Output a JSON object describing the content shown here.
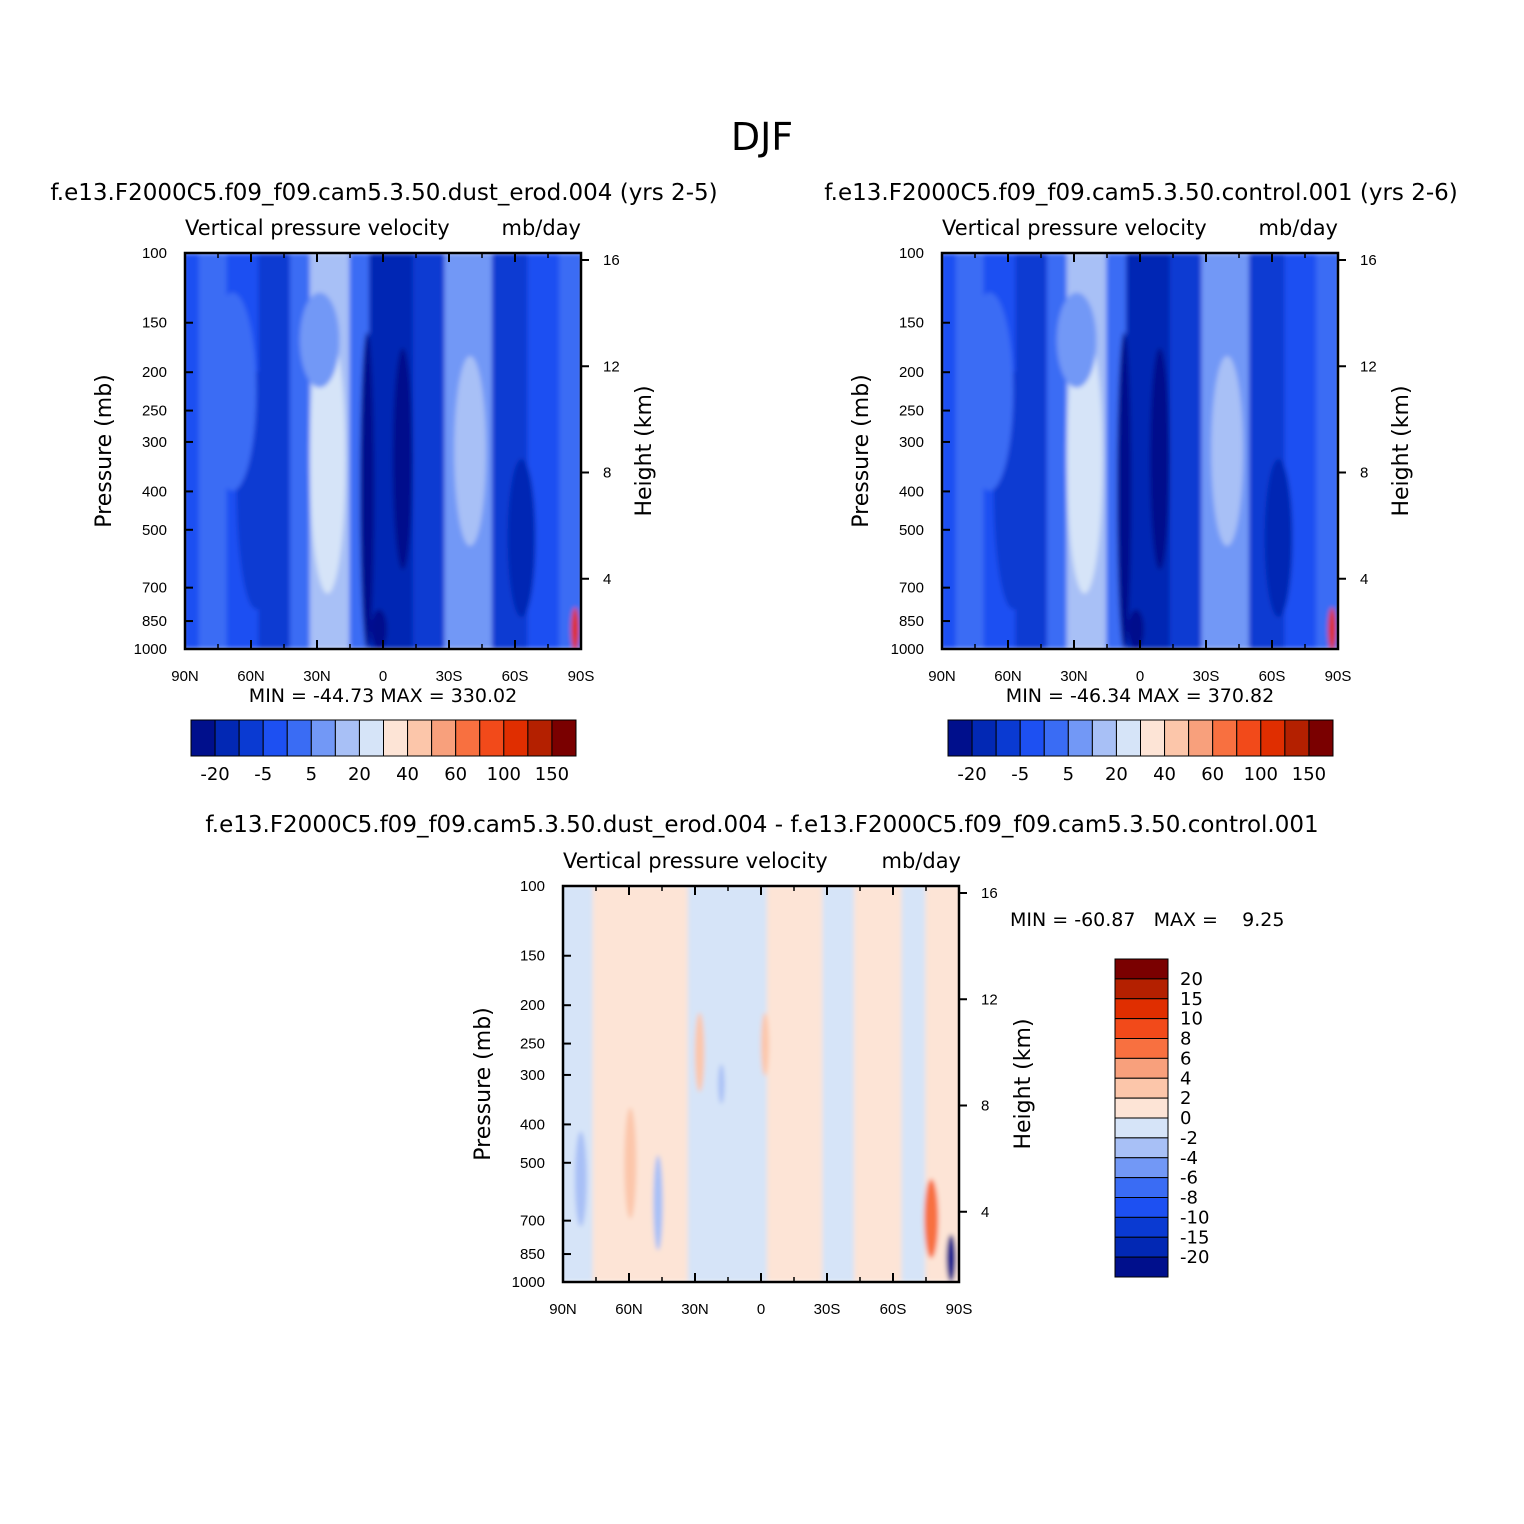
{
  "figure": {
    "title": "DJF",
    "variable_label": "Vertical pressure velocity",
    "units_label": "mb/day",
    "left_axis_label": "Pressure (mb)",
    "right_axis_label": "Height (km)"
  },
  "panels": [
    {
      "id": "case",
      "subtitle": "f.e13.F2000C5.f09_f09.cam5.3.50.dust_erod.004 (yrs 2-5)",
      "stats": "MIN = -44.73   MAX = 330.02"
    },
    {
      "id": "control",
      "subtitle": "f.e13.F2000C5.f09_f09.cam5.3.50.control.001 (yrs 2-6)",
      "stats": "MIN = -46.34   MAX = 370.82"
    },
    {
      "id": "difference",
      "subtitle": "f.e13.F2000C5.f09_f09.cam5.3.50.dust_erod.004 - f.e13.F2000C5.f09_f09.cam5.3.50.control.001",
      "stats": "MIN = -60.87   MAX =    9.25"
    }
  ],
  "colors": {
    "palette": [
      "#000f8c",
      "#0228b4",
      "#0a3ad2",
      "#1d50f2",
      "#3a6cf4",
      "#7298f6",
      "#a8c0f6",
      "#d6e4f8",
      "#fde4d6",
      "#fcc6aa",
      "#f8a07c",
      "#f87040",
      "#f24a1a",
      "#e02e00",
      "#b42000",
      "#7a0000"
    ]
  },
  "chart_data": [
    {
      "type": "heatmap",
      "panel": "case",
      "x_ticks": [
        "90N",
        "60N",
        "30N",
        "0",
        "30S",
        "60S",
        "90S"
      ],
      "x_range": [
        90,
        -90
      ],
      "y_ticks": [
        100,
        150,
        200,
        250,
        300,
        400,
        500,
        700,
        850,
        1000
      ],
      "y_range": [
        1000,
        100
      ],
      "y_scale": "log",
      "right_ticks": [
        4,
        8,
        12,
        16
      ],
      "colorbar_levels": [
        -20,
        -15,
        -10,
        -5,
        -2,
        2,
        5,
        10,
        20,
        30,
        40,
        50,
        60,
        80,
        100,
        120,
        150
      ],
      "colorbar_labels": [
        "-20",
        "-5",
        "5",
        "20",
        "40",
        "60",
        "100",
        "150"
      ],
      "stats": {
        "min": -44.73,
        "max": 330.02
      }
    },
    {
      "type": "heatmap",
      "panel": "control",
      "x_ticks": [
        "90N",
        "60N",
        "30N",
        "0",
        "30S",
        "60S",
        "90S"
      ],
      "x_range": [
        90,
        -90
      ],
      "y_ticks": [
        100,
        150,
        200,
        250,
        300,
        400,
        500,
        700,
        850,
        1000
      ],
      "y_range": [
        1000,
        100
      ],
      "y_scale": "log",
      "right_ticks": [
        4,
        8,
        12,
        16
      ],
      "colorbar_levels": [
        -20,
        -15,
        -10,
        -5,
        -2,
        2,
        5,
        10,
        20,
        30,
        40,
        50,
        60,
        80,
        100,
        120,
        150
      ],
      "colorbar_labels": [
        "-20",
        "-5",
        "5",
        "20",
        "40",
        "60",
        "100",
        "150"
      ],
      "stats": {
        "min": -46.34,
        "max": 370.82
      }
    },
    {
      "type": "heatmap",
      "panel": "difference",
      "x_ticks": [
        "90N",
        "60N",
        "30N",
        "0",
        "30S",
        "60S",
        "90S"
      ],
      "x_range": [
        90,
        -90
      ],
      "y_ticks": [
        100,
        150,
        200,
        250,
        300,
        400,
        500,
        700,
        850,
        1000
      ],
      "y_range": [
        1000,
        100
      ],
      "y_scale": "log",
      "right_ticks": [
        4,
        8,
        12,
        16
      ],
      "colorbar_labels": [
        "20",
        "15",
        "10",
        "8",
        "6",
        "4",
        "2",
        "0",
        "-2",
        "-4",
        "-6",
        "-8",
        "-10",
        "-15",
        "-20"
      ],
      "stats": {
        "min": -60.87,
        "max": 9.25
      }
    }
  ]
}
